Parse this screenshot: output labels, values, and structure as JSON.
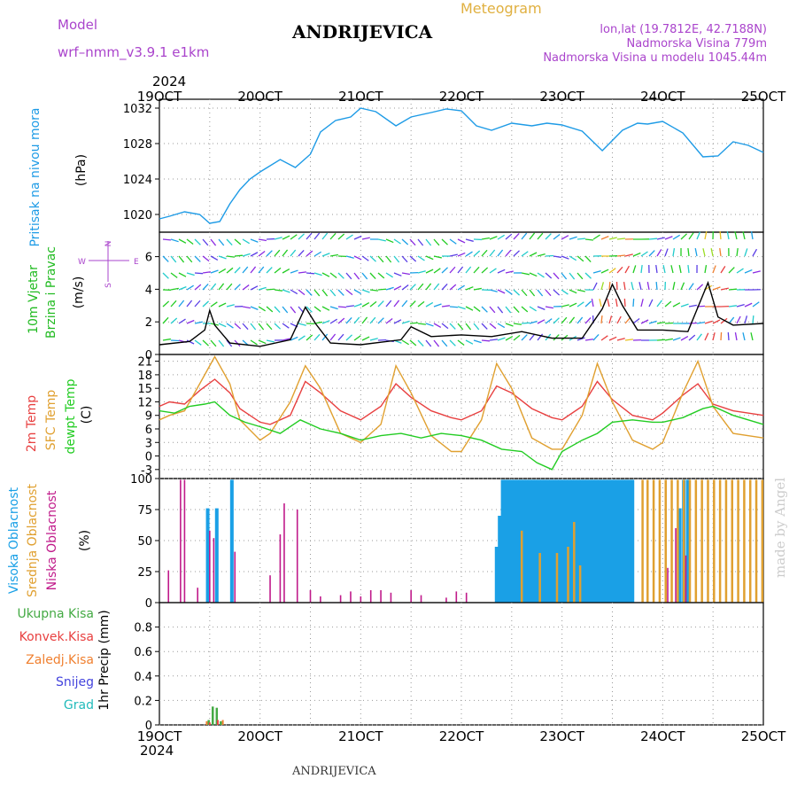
{
  "header": {
    "station": "ANDRIJEVICA",
    "meteogram": "Meteogram",
    "model_label": "Model",
    "model_name": "wrf–nmm_v3.9.1  e1km",
    "lonlat": "lon,lat (19.7812E, 42.7188N)",
    "altitude": "Nadmorska Visina 779m",
    "model_altitude": "Nadmorska Visina u modelu 1045.44m",
    "footer_station": "ANDRIJEVICA",
    "credit": "made by Angel",
    "year_top": "2024",
    "year_bottom": "2024"
  },
  "colors": {
    "pressure": "#1e9be6",
    "wind_label": "#22bb22",
    "temp2m": "#e84040",
    "sfc": "#e0a030",
    "dewpt": "#22cc22",
    "high_cloud": "#1aa0e6",
    "mid_cloud": "#e0a030",
    "low_cloud": "#c01a8a",
    "precip_total": "#44aa44",
    "precip_conv": "#e84040",
    "precip_frz": "#f08030",
    "precip_snow": "#4444dd",
    "precip_grad": "#22bbbb",
    "compass": "#aa44cc",
    "header_purple": "#aa44cc",
    "header_gold": "#e0b040"
  },
  "axes": {
    "x_ticks": [
      "19OCT",
      "20OCT",
      "21OCT",
      "22OCT",
      "23OCT",
      "24OCT",
      "25OCT"
    ]
  },
  "panels": {
    "pressure": {
      "label": "Pritisak na nivou mora",
      "unit": "(hPa)"
    },
    "wind": {
      "label1": "10m Vjetar",
      "label2": "Brzina i Pravac",
      "unit": "(m/s)"
    },
    "temp": {
      "label1": "2m Temp",
      "label2": "SFC Temp",
      "label3": "dewpt Temp",
      "unit": "(C)"
    },
    "cloud": {
      "label1": "Visoka Oblacnost",
      "label2": "Srednja Oblacnost",
      "label3": "Niska Oblacnost",
      "unit": "(%)"
    },
    "precip": {
      "legend": [
        "Ukupna Kisa",
        "Konvek.Kisa",
        "Zaledj.Kisa",
        "Snijeg",
        "Grad"
      ],
      "unit": "1hr Precip (mm)"
    }
  },
  "compass": {
    "n": "N",
    "s": "S",
    "w": "W",
    "e": "E"
  },
  "chart_data": [
    {
      "type": "line",
      "title": "Pritisak na nivou mora",
      "ylabel": "(hPa)",
      "xlim": [
        0,
        6
      ],
      "ylim": [
        1018,
        1033
      ],
      "yticks": [
        1020,
        1024,
        1028,
        1032
      ],
      "series": [
        {
          "name": "Pritisak na nivou mora",
          "x": [
            0,
            0.1,
            0.25,
            0.4,
            0.5,
            0.6,
            0.7,
            0.8,
            0.9,
            1.0,
            1.2,
            1.35,
            1.5,
            1.6,
            1.75,
            1.9,
            2.0,
            2.15,
            2.35,
            2.5,
            2.7,
            2.85,
            3.0,
            3.15,
            3.3,
            3.5,
            3.7,
            3.85,
            4.0,
            4.2,
            4.4,
            4.6,
            4.75,
            4.85,
            5.0,
            5.2,
            5.4,
            5.55,
            5.7,
            5.85,
            6.0
          ],
          "values": [
            1019.5,
            1019.8,
            1020.3,
            1020.0,
            1019.0,
            1019.2,
            1021.2,
            1022.8,
            1024.0,
            1024.8,
            1026.2,
            1025.3,
            1026.8,
            1029.3,
            1030.6,
            1031.0,
            1032.0,
            1031.6,
            1030.0,
            1031.0,
            1031.5,
            1031.9,
            1031.7,
            1030.0,
            1029.5,
            1030.3,
            1030.0,
            1030.3,
            1030.1,
            1029.4,
            1027.2,
            1029.5,
            1030.3,
            1030.2,
            1030.5,
            1029.2,
            1026.5,
            1026.6,
            1028.2,
            1027.8,
            1027.0
          ]
        }
      ]
    },
    {
      "type": "line",
      "title": "10m Vjetar Brzina i Pravac",
      "ylabel": "(m/s)",
      "xlim": [
        0,
        6
      ],
      "ylim": [
        0,
        7.5
      ],
      "yticks": [
        0,
        2,
        4,
        6
      ],
      "series": [
        {
          "name": "Brzina",
          "x": [
            0,
            0.3,
            0.45,
            0.5,
            0.55,
            0.7,
            1.0,
            1.3,
            1.45,
            1.55,
            1.7,
            2.0,
            2.4,
            2.5,
            2.7,
            3.0,
            3.3,
            3.6,
            3.9,
            4.2,
            4.4,
            4.5,
            4.6,
            4.75,
            5.0,
            5.25,
            5.45,
            5.55,
            5.7,
            6.0
          ],
          "values": [
            0.6,
            0.8,
            1.5,
            2.7,
            1.8,
            0.7,
            0.5,
            0.9,
            2.9,
            1.9,
            0.7,
            0.6,
            0.9,
            1.7,
            1.1,
            1.2,
            1.1,
            1.4,
            1.0,
            1.0,
            2.8,
            4.3,
            3.0,
            1.5,
            1.5,
            1.4,
            4.4,
            2.3,
            1.8,
            1.9
          ]
        }
      ]
    },
    {
      "type": "line",
      "title": "2m Temp / SFC Temp / dewpt Temp",
      "ylabel": "(C)",
      "xlim": [
        0,
        6
      ],
      "ylim": [
        -5,
        22.5
      ],
      "yticks": [
        -3,
        0,
        3,
        6,
        9,
        12,
        15,
        18,
        21
      ],
      "series": [
        {
          "name": "2m Temp",
          "x": [
            0,
            0.1,
            0.25,
            0.4,
            0.55,
            0.7,
            0.8,
            1.0,
            1.1,
            1.3,
            1.45,
            1.6,
            1.8,
            2.0,
            2.2,
            2.35,
            2.5,
            2.7,
            2.9,
            3.0,
            3.2,
            3.35,
            3.5,
            3.7,
            3.9,
            4.0,
            4.2,
            4.35,
            4.5,
            4.7,
            4.9,
            5.0,
            5.2,
            5.35,
            5.5,
            5.7,
            6.0
          ],
          "values": [
            11,
            12,
            11.5,
            14.5,
            17,
            14,
            10.5,
            7.5,
            7,
            9,
            16.5,
            14,
            10,
            8,
            11,
            16,
            13,
            10,
            8.5,
            8,
            10,
            15.5,
            14,
            10.5,
            8.5,
            8,
            11,
            16.5,
            12.5,
            9,
            8,
            9.5,
            13.5,
            16,
            11.5,
            10,
            9
          ]
        },
        {
          "name": "SFC Temp",
          "x": [
            0,
            0.1,
            0.25,
            0.4,
            0.55,
            0.7,
            0.8,
            1.0,
            1.1,
            1.3,
            1.45,
            1.6,
            1.8,
            2.0,
            2.2,
            2.35,
            2.5,
            2.7,
            2.9,
            3.0,
            3.2,
            3.35,
            3.5,
            3.7,
            3.9,
            4.0,
            4.2,
            4.35,
            4.5,
            4.7,
            4.9,
            5.0,
            5.2,
            5.35,
            5.5,
            5.7,
            6.0
          ],
          "values": [
            8,
            9,
            10,
            16,
            22,
            16,
            8,
            3.5,
            5,
            12,
            20,
            15,
            5,
            3,
            7,
            20,
            14,
            4.5,
            1,
            1,
            8,
            20.5,
            15,
            4,
            1.5,
            1.5,
            9,
            20.5,
            12,
            3.5,
            1.5,
            3,
            14,
            21,
            11,
            5,
            4
          ]
        },
        {
          "name": "dewpt Temp",
          "x": [
            0,
            0.15,
            0.3,
            0.45,
            0.55,
            0.7,
            0.85,
            1.0,
            1.2,
            1.4,
            1.6,
            1.8,
            2.0,
            2.2,
            2.4,
            2.6,
            2.8,
            3.0,
            3.2,
            3.4,
            3.6,
            3.75,
            3.9,
            4.0,
            4.2,
            4.35,
            4.5,
            4.7,
            4.9,
            5.0,
            5.2,
            5.4,
            5.5,
            5.7,
            6.0
          ],
          "values": [
            10,
            9.5,
            11,
            11.5,
            12,
            9,
            7.5,
            6.5,
            5,
            8,
            6,
            5,
            3.5,
            4.5,
            5,
            4,
            5,
            4.5,
            3.5,
            1.5,
            1,
            -1.5,
            -3,
            1,
            3.5,
            5,
            7.5,
            8,
            7.5,
            7.5,
            8.5,
            10.5,
            11,
            9,
            7
          ]
        }
      ]
    },
    {
      "type": "bar",
      "title": "Oblacnost",
      "ylabel": "(%)",
      "xlim": [
        0,
        6
      ],
      "ylim": [
        0,
        100
      ],
      "yticks": [
        0,
        25,
        50,
        75,
        100
      ],
      "series": [
        {
          "name": "Visoka Oblacnost",
          "x": [
            0.48,
            0.57,
            0.72,
            3.35,
            3.38,
            3.41,
            3.44,
            3.47,
            3.5,
            3.53,
            3.56,
            3.59,
            3.62,
            3.65,
            3.68,
            3.71,
            3.74,
            3.77,
            3.8,
            3.83,
            3.86,
            3.89,
            3.92,
            3.95,
            3.98,
            4.01,
            4.04,
            4.07,
            4.1,
            4.13,
            4.16,
            4.19,
            4.22,
            4.25,
            4.28,
            4.31,
            4.34,
            4.37,
            4.4,
            4.43,
            4.46,
            4.49,
            4.52,
            4.55,
            4.58,
            4.61,
            4.64,
            4.67,
            4.7,
            5.17,
            5.21,
            5.25
          ],
          "values": [
            76,
            76,
            99,
            45,
            70,
            99,
            99,
            99,
            99,
            99,
            99,
            99,
            99,
            99,
            99,
            99,
            99,
            99,
            99,
            99,
            99,
            99,
            99,
            99,
            99,
            99,
            99,
            99,
            99,
            99,
            99,
            99,
            99,
            99,
            99,
            99,
            99,
            99,
            99,
            99,
            99,
            99,
            99,
            99,
            99,
            99,
            99,
            99,
            99,
            76,
            99,
            99
          ]
        },
        {
          "name": "Srednja Oblacnost",
          "x": [
            3.6,
            3.78,
            3.95,
            4.06,
            4.12,
            4.18,
            4.8,
            4.85,
            4.91,
            4.97,
            5.03,
            5.09,
            5.15,
            5.21,
            5.27,
            5.33,
            5.39,
            5.45,
            5.51,
            5.57,
            5.63,
            5.69,
            5.75,
            5.81,
            5.87,
            5.93,
            5.99
          ],
          "values": [
            58,
            40,
            40,
            45,
            65,
            30,
            99,
            99,
            99,
            99,
            99,
            99,
            99,
            99,
            99,
            99,
            99,
            99,
            99,
            99,
            99,
            99,
            99,
            99,
            99,
            99,
            99
          ]
        },
        {
          "name": "Niska Oblacnost",
          "x": [
            0.09,
            0.21,
            0.25,
            0.38,
            0.5,
            0.54,
            0.75,
            1.1,
            1.2,
            1.24,
            1.37,
            1.5,
            1.6,
            1.8,
            1.9,
            2.0,
            2.1,
            2.2,
            2.3,
            2.5,
            2.6,
            2.85,
            2.95,
            3.05,
            5.05,
            5.13,
            5.23
          ],
          "values": [
            26,
            99,
            99,
            12,
            58,
            52,
            41,
            22,
            55,
            80,
            75,
            10,
            5,
            6,
            9,
            5,
            10,
            10,
            8,
            10,
            6,
            4,
            9,
            8,
            28,
            60,
            38
          ]
        }
      ]
    },
    {
      "type": "bar",
      "title": "1hr Precip (mm)",
      "ylabel": "1hr Precip (mm)",
      "xlim": [
        0,
        6
      ],
      "ylim": [
        0,
        1.0
      ],
      "yticks": [
        0,
        0.2,
        0.4,
        0.6,
        0.8
      ],
      "series": [
        {
          "name": "Ukupna Kisa",
          "x": [
            0.49,
            0.53,
            0.57,
            0.61
          ],
          "values": [
            0.04,
            0.15,
            0.14,
            0.03
          ]
        },
        {
          "name": "Konvek.Kisa",
          "x": [
            0.5,
            0.58
          ],
          "values": [
            0.02,
            0.04
          ]
        },
        {
          "name": "Zaledj.Kisa",
          "x": [
            0.47,
            0.63
          ],
          "values": [
            0.03,
            0.04
          ]
        }
      ]
    }
  ]
}
